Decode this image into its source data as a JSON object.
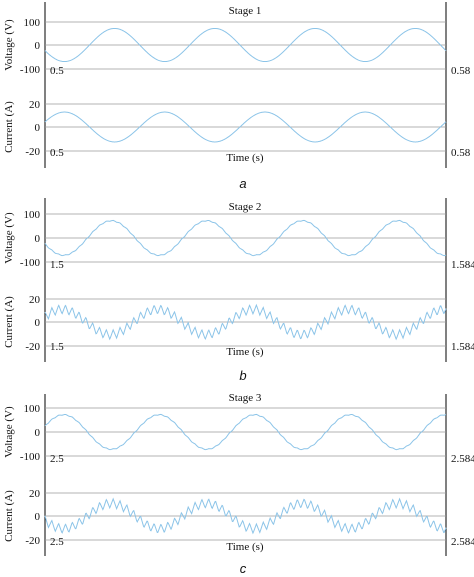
{
  "colors": {
    "trace": "#8cc4e8",
    "axis": "#000000",
    "grid": "#9a9a9a",
    "text": "#111111"
  },
  "chart_data": [
    {
      "type": "line",
      "panel_label": "a",
      "stage_title": "Stage 1",
      "xlabel": "Time (s)",
      "voltage": {
        "ylabel": "Voltage (V)",
        "ylim": [
          -100,
          100
        ],
        "yticks": [
          "100",
          "0",
          "-100"
        ],
        "xstart_label": "0.5",
        "xend_label": "0.58",
        "xlim": [
          0.5,
          0.58
        ],
        "amplitude": 72,
        "frequency_hz": 50,
        "phase_deg": 200,
        "ripple": 0
      },
      "current": {
        "ylabel": "Current (A)",
        "ylim": [
          -20,
          20
        ],
        "yticks": [
          "20",
          "0",
          "-20"
        ],
        "xstart_label": "0.5",
        "xend_label": "0.58",
        "xlim": [
          0.5,
          0.58
        ],
        "amplitude": 13,
        "frequency_hz": 50,
        "phase_deg": 20,
        "ripple": 0
      }
    },
    {
      "type": "line",
      "panel_label": "b",
      "stage_title": "Stage 2",
      "xlabel": "Time (s)",
      "voltage": {
        "ylabel": "Voltage (V)",
        "ylim": [
          -100,
          100
        ],
        "yticks": [
          "100",
          "0",
          "-100"
        ],
        "xstart_label": "1.5",
        "xend_label": "1.584",
        "xlim": [
          1.5,
          1.584
        ],
        "amplitude": 72,
        "frequency_hz": 50,
        "phase_deg": 200,
        "ripple": 2
      },
      "current": {
        "ylabel": "Current (A)",
        "ylim": [
          -20,
          20
        ],
        "yticks": [
          "20",
          "0",
          "-20"
        ],
        "xstart_label": "1.5",
        "xend_label": "1.584",
        "xlim": [
          1.5,
          1.584
        ],
        "amplitude": 11,
        "frequency_hz": 50,
        "phase_deg": 25,
        "ripple": 4
      }
    },
    {
      "type": "line",
      "panel_label": "c",
      "stage_title": "Stage 3",
      "xlabel": "Time (s)",
      "voltage": {
        "ylabel": "Voltage (V)",
        "ylim": [
          -100,
          100
        ],
        "yticks": [
          "100",
          "0",
          "-100"
        ],
        "xstart_label": "2.5",
        "xend_label": "2.584",
        "xlim": [
          2.5,
          2.584
        ],
        "amplitude": 72,
        "frequency_hz": 50,
        "phase_deg": 20,
        "ripple": 2
      },
      "current": {
        "ylabel": "Current (A)",
        "ylim": [
          -20,
          20
        ],
        "yticks": [
          "20",
          "0",
          "-20"
        ],
        "xstart_label": "2.5",
        "xend_label": "2.584",
        "xlim": [
          2.5,
          2.584
        ],
        "amplitude": 11,
        "frequency_hz": 50,
        "phase_deg": 200,
        "ripple": 4
      }
    }
  ]
}
